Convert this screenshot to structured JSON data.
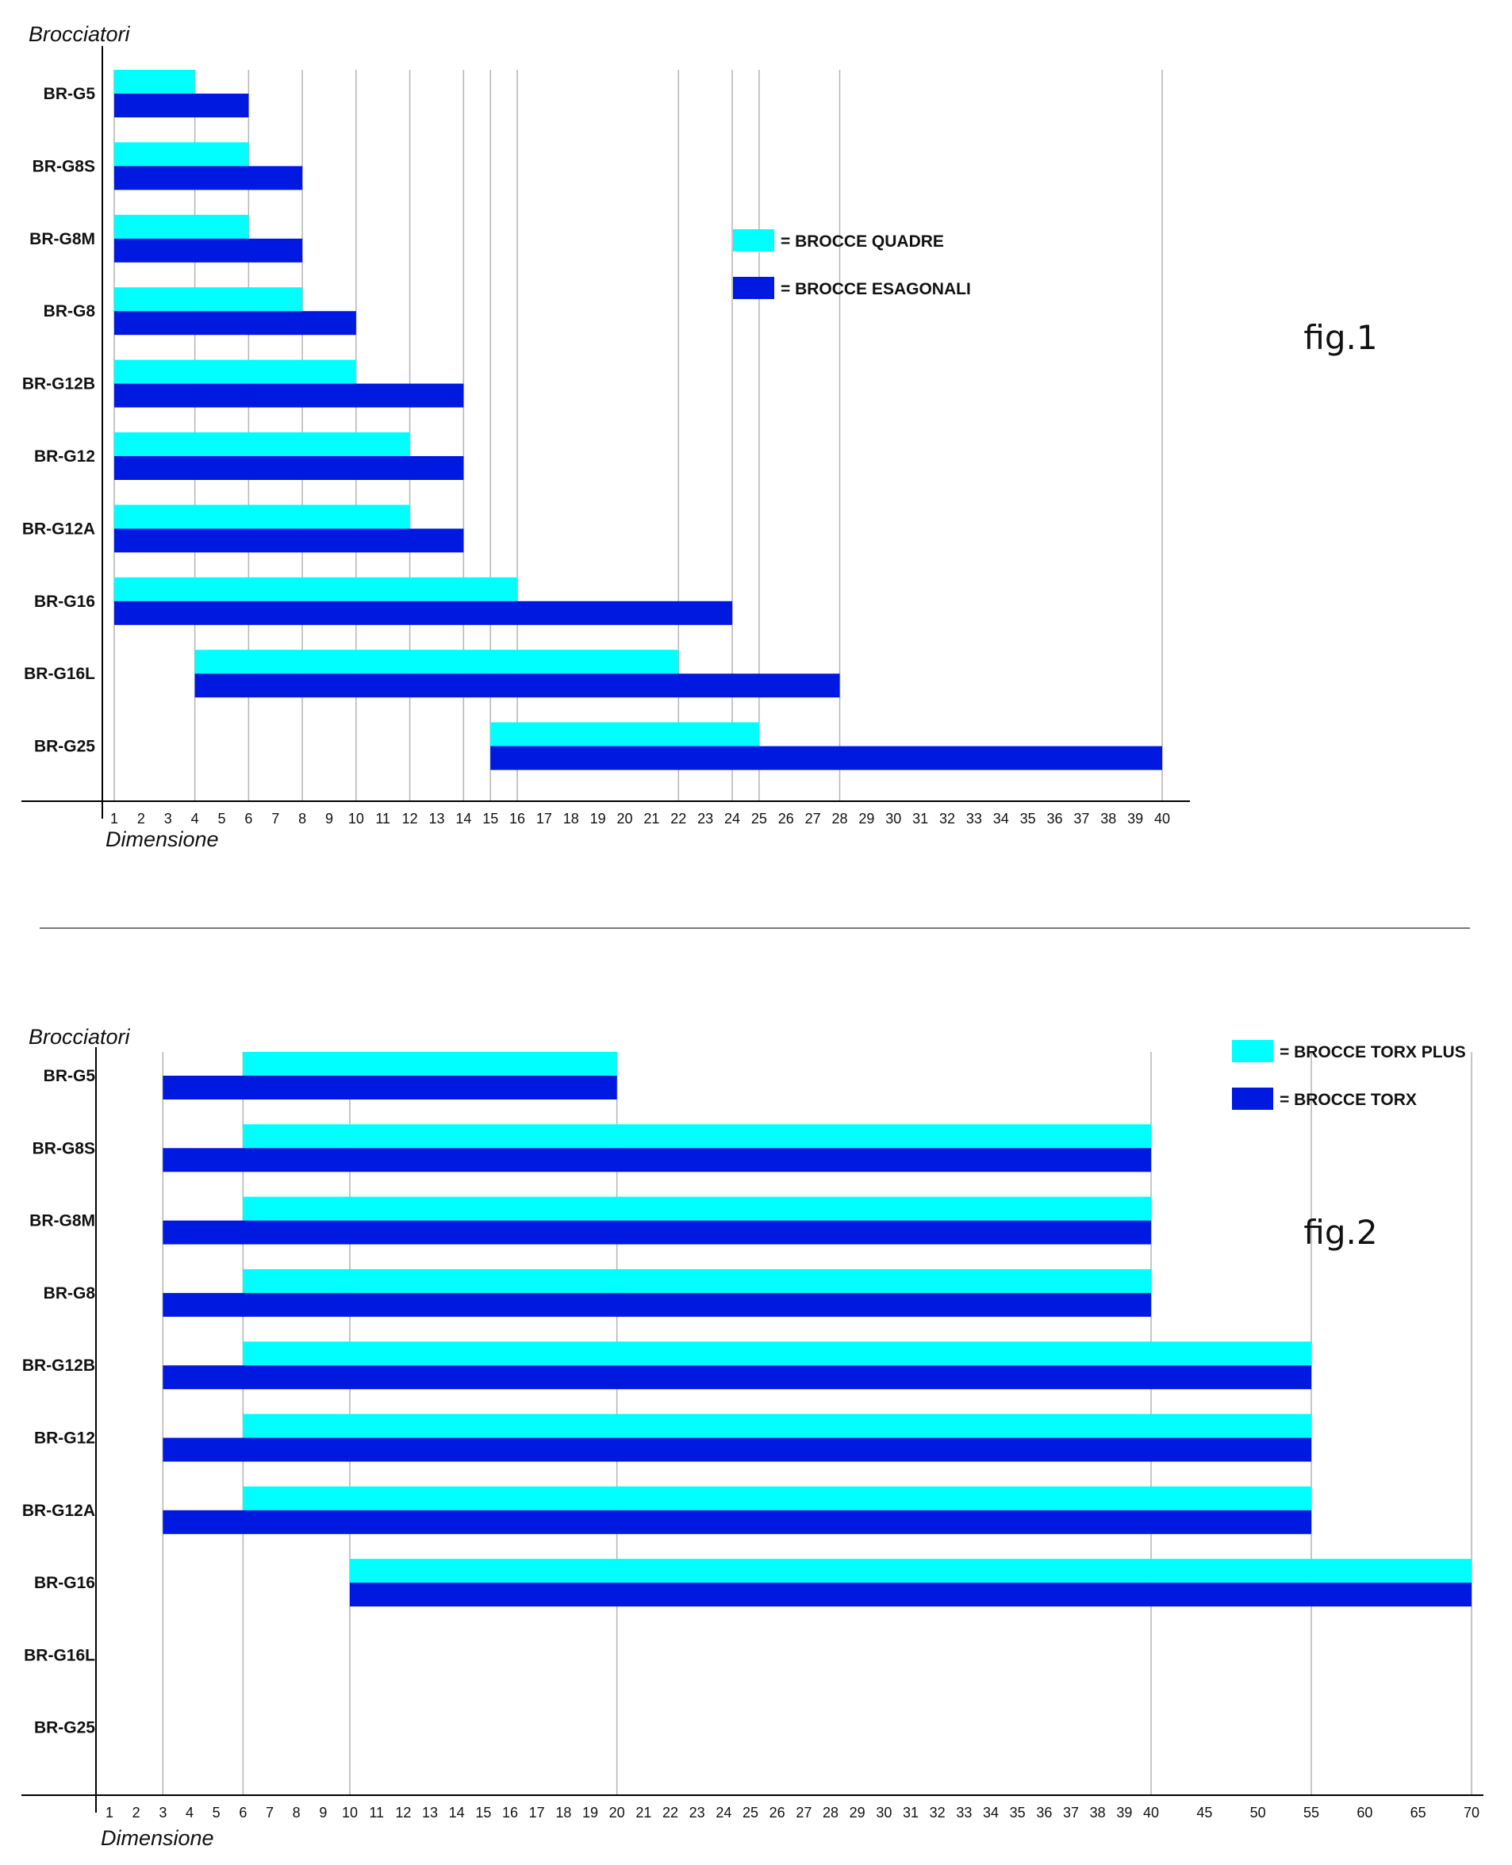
{
  "colors": {
    "cyan": "#00ffff",
    "blue": "#0019e0",
    "axis": "#000000",
    "grid": "#b4b4b4",
    "separator": "#7a7a7a"
  },
  "chart_data": [
    {
      "type": "bar",
      "orientation": "horizontal-range",
      "figure_label": "fig.1",
      "ylabel": "Brocciatori",
      "xlabel": "Dimensione",
      "x_ticks": [
        "1",
        "2",
        "3",
        "4",
        "5",
        "6",
        "7",
        "8",
        "9",
        "10",
        "11",
        "12",
        "13",
        "14",
        "15",
        "16",
        "17",
        "18",
        "19",
        "20",
        "21",
        "22",
        "23",
        "24",
        "25",
        "26",
        "27",
        "28",
        "29",
        "30",
        "31",
        "32",
        "33",
        "34",
        "35",
        "36",
        "37",
        "38",
        "39",
        "40"
      ],
      "categories": [
        "BR-G5",
        "BR-G8S",
        "BR-G8M",
        "BR-G8",
        "BR-G12B",
        "BR-G12",
        "BR-G12A",
        "BR-G16",
        "BR-G16L",
        "BR-G25"
      ],
      "series": [
        {
          "name": "= BROCCE QUADRE",
          "color": "cyan",
          "ranges": [
            [
              1,
              4
            ],
            [
              1,
              6
            ],
            [
              1,
              6
            ],
            [
              1,
              8
            ],
            [
              1,
              10
            ],
            [
              1,
              12
            ],
            [
              1,
              12
            ],
            [
              1,
              16
            ],
            [
              4,
              22
            ],
            [
              15,
              25
            ]
          ]
        },
        {
          "name": "= BROCCE ESAGONALI",
          "color": "blue",
          "ranges": [
            [
              1,
              6
            ],
            [
              1,
              8
            ],
            [
              1,
              8
            ],
            [
              1,
              10
            ],
            [
              1,
              14
            ],
            [
              1,
              14
            ],
            [
              1,
              14
            ],
            [
              1,
              24
            ],
            [
              4,
              28
            ],
            [
              15,
              40
            ]
          ]
        }
      ],
      "grid": "vertical lines at bar ends",
      "legend": "center-right"
    },
    {
      "type": "bar",
      "orientation": "horizontal-range",
      "figure_label": "fig.2",
      "ylabel": "Brocciatori",
      "xlabel": "Dimensione",
      "x_ticks": [
        "1",
        "2",
        "3",
        "4",
        "5",
        "6",
        "7",
        "8",
        "9",
        "10",
        "11",
        "12",
        "13",
        "14",
        "15",
        "16",
        "17",
        "18",
        "19",
        "20",
        "21",
        "22",
        "23",
        "24",
        "25",
        "26",
        "27",
        "28",
        "29",
        "30",
        "31",
        "32",
        "33",
        "34",
        "35",
        "36",
        "37",
        "38",
        "39",
        "40",
        "45",
        "50",
        "55",
        "60",
        "65",
        "70"
      ],
      "categories": [
        "BR-G5",
        "BR-G8S",
        "BR-G8M",
        "BR-G8",
        "BR-G12B",
        "BR-G12",
        "BR-G12A",
        "BR-G16",
        "BR-G16L",
        "BR-G25"
      ],
      "series": [
        {
          "name": "= BROCCE TORX PLUS",
          "color": "cyan",
          "ranges": [
            [
              6,
              20
            ],
            [
              6,
              40
            ],
            [
              6,
              40
            ],
            [
              6,
              40
            ],
            [
              6,
              55
            ],
            [
              6,
              55
            ],
            [
              6,
              55
            ],
            [
              10,
              70
            ],
            null,
            null
          ]
        },
        {
          "name": "= BROCCE TORX",
          "color": "blue",
          "ranges": [
            [
              3,
              20
            ],
            [
              3,
              40
            ],
            [
              3,
              40
            ],
            [
              3,
              40
            ],
            [
              3,
              55
            ],
            [
              3,
              55
            ],
            [
              3,
              55
            ],
            [
              10,
              70
            ],
            null,
            null
          ]
        }
      ],
      "grid": "vertical lines at bar ends",
      "legend": "top-right"
    }
  ]
}
